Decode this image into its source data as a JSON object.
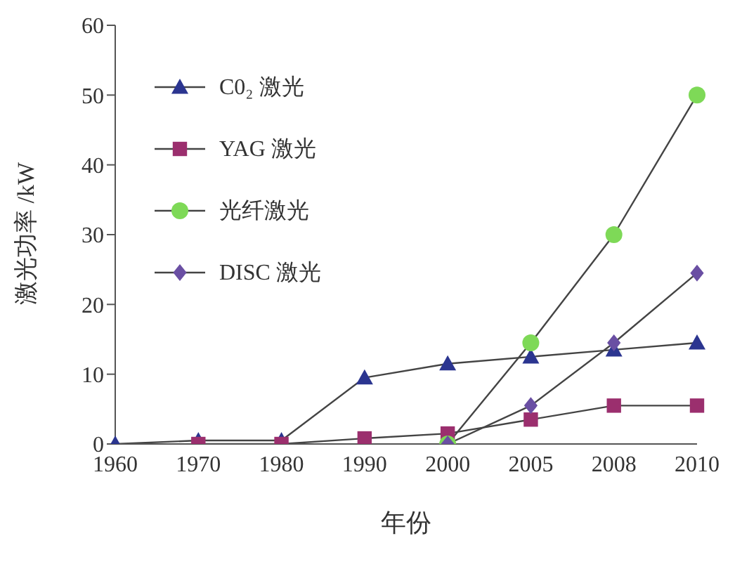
{
  "chart_data": {
    "type": "line",
    "xlabel": "年份",
    "ylabel": "激光功率 /kW",
    "categories": [
      "1960",
      "1970",
      "1980",
      "1990",
      "2000",
      "2005",
      "2008",
      "2010"
    ],
    "ylim": [
      0,
      60
    ],
    "yticks": [
      0,
      10,
      20,
      30,
      40,
      50,
      60
    ],
    "grid": false,
    "legend": "top left",
    "series": [
      {
        "name": "C0₂ 激光",
        "color": "#2b3590",
        "marker": "triangle",
        "values": [
          0,
          0.5,
          0.5,
          9.5,
          11.5,
          12.5,
          13.5,
          14.5
        ]
      },
      {
        "name": "YAG 激光",
        "color": "#9b2f6e",
        "marker": "square",
        "values": [
          null,
          0,
          0,
          0.8,
          1.5,
          3.5,
          5.5,
          5.5
        ]
      },
      {
        "name": "光纤激光",
        "color": "#7ed957",
        "marker": "circle",
        "values": [
          null,
          null,
          null,
          null,
          0,
          14.5,
          30,
          50
        ]
      },
      {
        "name": "DISC 激光",
        "color": "#6a4fa3",
        "marker": "diamond",
        "values": [
          null,
          null,
          null,
          null,
          0,
          5.5,
          14.5,
          24.5
        ]
      }
    ]
  }
}
